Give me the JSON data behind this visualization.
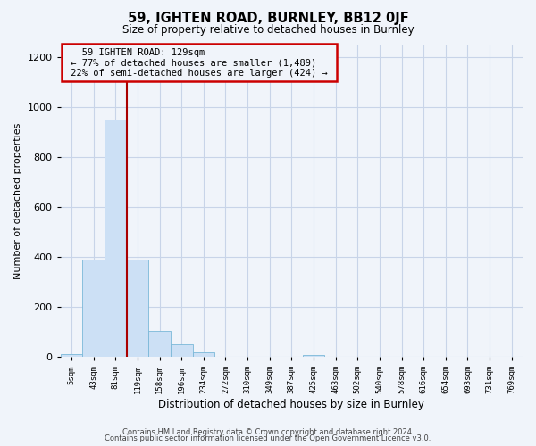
{
  "title": "59, IGHTEN ROAD, BURNLEY, BB12 0JF",
  "subtitle": "Size of property relative to detached houses in Burnley",
  "xlabel": "Distribution of detached houses by size in Burnley",
  "ylabel": "Number of detached properties",
  "bar_labels": [
    "5sqm",
    "43sqm",
    "81sqm",
    "119sqm",
    "158sqm",
    "196sqm",
    "234sqm",
    "272sqm",
    "310sqm",
    "349sqm",
    "387sqm",
    "425sqm",
    "463sqm",
    "502sqm",
    "540sqm",
    "578sqm",
    "616sqm",
    "654sqm",
    "693sqm",
    "731sqm",
    "769sqm"
  ],
  "bar_values": [
    10,
    390,
    950,
    390,
    105,
    50,
    18,
    0,
    0,
    0,
    0,
    8,
    0,
    0,
    0,
    0,
    0,
    0,
    0,
    0,
    0
  ],
  "bar_color": "#cce0f5",
  "bar_edge_color": "#7ab8d8",
  "vline_x_bar_idx": 3,
  "vline_color": "#aa0000",
  "annotation_text_line1": "59 IGHTEN ROAD: 129sqm",
  "annotation_text_line2": "← 77% of detached houses are smaller (1,489)",
  "annotation_text_line3": "22% of semi-detached houses are larger (424) →",
  "annotation_box_color": "#cc0000",
  "ylim": [
    0,
    1250
  ],
  "yticks": [
    0,
    200,
    400,
    600,
    800,
    1000,
    1200
  ],
  "footer_line1": "Contains HM Land Registry data © Crown copyright and database right 2024.",
  "footer_line2": "Contains public sector information licensed under the Open Government Licence v3.0.",
  "bg_color": "#f0f4fa",
  "grid_color": "#c8d4e8"
}
